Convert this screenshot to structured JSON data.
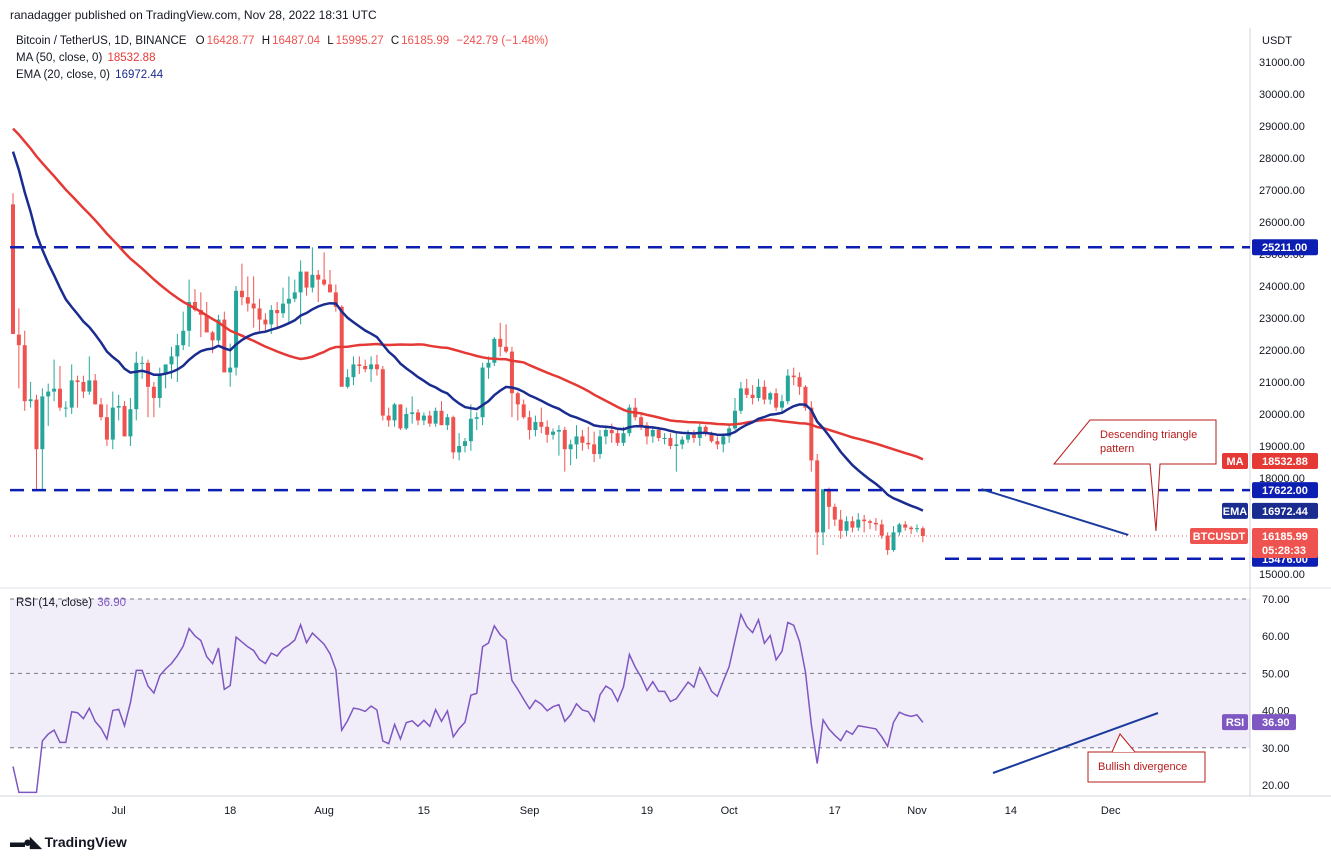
{
  "header": {
    "publisher_line": "ranadagger published on TradingView.com, Nov 28, 2022 18:31 UTC"
  },
  "legend": {
    "symbol": "Bitcoin / TetherUS, 1D, BINANCE",
    "open_label": "O",
    "open": "16428.77",
    "high_label": "H",
    "high": "16487.04",
    "low_label": "L",
    "low": "15995.27",
    "close_label": "C",
    "close": "16185.99",
    "change": "−242.79 (−1.48%)",
    "ma_label": "MA (50, close, 0)",
    "ma_value": "18532.88",
    "ema_label": "EMA (20, close, 0)",
    "ema_value": "16972.44",
    "rsi_label": "RSI (14, close)",
    "rsi_value": "36.90"
  },
  "branding": {
    "name": "TradingView"
  },
  "colors": {
    "up": "#26a69a",
    "down": "#ef5350",
    "ma": "#e53935",
    "ema": "#1a2c8f",
    "level": "#0d1fb3",
    "rsi": "#7e57c2",
    "annotation": "#b71c1c",
    "trendline": "#1a3a9e"
  },
  "chart_data": [
    {
      "type": "candlestick",
      "title": "Bitcoin / TetherUS, 1D, BINANCE",
      "ylabel": "USDT",
      "ylim": [
        14700,
        31600
      ],
      "y_ticks": [
        "31000.00",
        "30000.00",
        "29000.00",
        "28000.00",
        "27000.00",
        "26000.00",
        "25000.00",
        "24000.00",
        "23000.00",
        "22000.00",
        "21000.00",
        "20000.00",
        "19000.00",
        "18000.00",
        "17000.00",
        "16000.00",
        "15000.00"
      ],
      "x_tick_labels": [
        "Jul",
        "18",
        "Aug",
        "15",
        "Sep",
        "19",
        "Oct",
        "17",
        "Nov",
        "14",
        "Dec"
      ],
      "x_tick_index": [
        18,
        37,
        53,
        70,
        88,
        108,
        122,
        140,
        154,
        170,
        187
      ],
      "horizontal_levels": [
        {
          "value": 25211.0,
          "label": "25211.00"
        },
        {
          "value": 17622.0,
          "label": "17622.00"
        },
        {
          "value": 15476.0,
          "label": "15476.00"
        }
      ],
      "price_tags": [
        {
          "name": "MA",
          "value": 18532.88,
          "label": "18532.88"
        },
        {
          "name": "EMA",
          "value": 16972.44,
          "label": "16972.44"
        },
        {
          "name": "BTCUSDT",
          "value": 16185.99,
          "label": "16185.99",
          "countdown": "05:28:33"
        }
      ],
      "annotation": {
        "text_line1": "Descending triangle",
        "text_line2": "pattern"
      },
      "trendline": {
        "from": [
          165,
          17650
        ],
        "to": [
          190,
          16220
        ]
      },
      "ohlc_first_date": "2022-06-13",
      "series_ohlc": [
        [
          26550,
          26900,
          22600,
          22500
        ],
        [
          22480,
          23300,
          20800,
          22150
        ],
        [
          22150,
          22600,
          20100,
          20400
        ],
        [
          20400,
          21000,
          20200,
          20460
        ],
        [
          20450,
          20600,
          17600,
          18900
        ],
        [
          18900,
          20800,
          17600,
          20550
        ],
        [
          20550,
          20950,
          19630,
          20700
        ],
        [
          20700,
          21700,
          20400,
          20790
        ],
        [
          20790,
          21500,
          20100,
          20200
        ],
        [
          20200,
          20400,
          19900,
          20200
        ],
        [
          20200,
          21550,
          20000,
          21050
        ],
        [
          21050,
          21200,
          20200,
          21000
        ],
        [
          21000,
          21200,
          20500,
          20700
        ],
        [
          20700,
          21800,
          20600,
          21050
        ],
        [
          21050,
          21250,
          20300,
          20300
        ],
        [
          20300,
          20500,
          19800,
          19900
        ],
        [
          19900,
          20300,
          19000,
          19200
        ],
        [
          19200,
          20700,
          18900,
          20200
        ],
        [
          20200,
          20600,
          19800,
          20250
        ],
        [
          20250,
          20400,
          19300,
          19300
        ],
        [
          19300,
          20500,
          19000,
          20150
        ],
        [
          20150,
          21950,
          19800,
          21600
        ],
        [
          21600,
          21800,
          21100,
          21600
        ],
        [
          21600,
          21700,
          19900,
          20850
        ],
        [
          20850,
          21000,
          19900,
          20500
        ],
        [
          20500,
          21450,
          20200,
          21250
        ],
        [
          21250,
          21300,
          20800,
          21550
        ],
        [
          21550,
          22100,
          21100,
          21800
        ],
        [
          21800,
          22500,
          21000,
          22150
        ],
        [
          22150,
          23200,
          22000,
          22600
        ],
        [
          22600,
          24200,
          22100,
          23500
        ],
        [
          23500,
          23900,
          23200,
          23250
        ],
        [
          23250,
          23800,
          22400,
          23100
        ],
        [
          23100,
          23500,
          22700,
          22550
        ],
        [
          22550,
          22600,
          21900,
          22300
        ],
        [
          22300,
          23100,
          22200,
          22950
        ],
        [
          22950,
          23200,
          21400,
          21300
        ],
        [
          21300,
          22200,
          20850,
          21450
        ],
        [
          21450,
          24000,
          21200,
          23850
        ],
        [
          23850,
          24700,
          23400,
          23650
        ],
        [
          23650,
          24300,
          23200,
          23450
        ],
        [
          23450,
          24300,
          22700,
          23300
        ],
        [
          23300,
          23600,
          22600,
          22950
        ],
        [
          22950,
          23150,
          22600,
          22800
        ],
        [
          22800,
          23400,
          22500,
          23250
        ],
        [
          23250,
          23500,
          22700,
          23150
        ],
        [
          23150,
          23950,
          23000,
          23450
        ],
        [
          23450,
          24300,
          22850,
          23600
        ],
        [
          23600,
          24200,
          23500,
          23800
        ],
        [
          23800,
          24800,
          22800,
          24450
        ],
        [
          24450,
          24400,
          23700,
          23950
        ],
        [
          23950,
          25211,
          23800,
          24350
        ],
        [
          24350,
          24500,
          23500,
          24200
        ],
        [
          24200,
          25050,
          24000,
          24050
        ],
        [
          24050,
          24500,
          23850,
          23800
        ],
        [
          23800,
          24050,
          23200,
          23350
        ],
        [
          23350,
          23400,
          21200,
          20850
        ],
        [
          20850,
          21400,
          20800,
          21150
        ],
        [
          21150,
          21800,
          20900,
          21550
        ],
        [
          21550,
          21800,
          21250,
          21500
        ],
        [
          21500,
          21700,
          21300,
          21400
        ],
        [
          21400,
          21800,
          21000,
          21550
        ],
        [
          21550,
          21850,
          21200,
          21400
        ],
        [
          21400,
          21500,
          19800,
          19950
        ],
        [
          19950,
          20200,
          19600,
          19800
        ],
        [
          19800,
          20350,
          19600,
          20300
        ],
        [
          20300,
          20300,
          19500,
          19550
        ],
        [
          19550,
          20200,
          19500,
          20000
        ],
        [
          20000,
          20550,
          19700,
          20050
        ],
        [
          20050,
          20150,
          19650,
          19800
        ],
        [
          19800,
          20050,
          19650,
          19950
        ],
        [
          19950,
          20100,
          19600,
          19700
        ],
        [
          19700,
          20200,
          19600,
          20100
        ],
        [
          20100,
          20400,
          19650,
          19650
        ],
        [
          19650,
          20000,
          19500,
          19900
        ],
        [
          19900,
          19950,
          18600,
          18800
        ],
        [
          18800,
          19400,
          18550,
          19000
        ],
        [
          19000,
          19250,
          18800,
          19150
        ],
        [
          19150,
          20300,
          18850,
          19850
        ],
        [
          19850,
          20050,
          19500,
          19900
        ],
        [
          19900,
          21600,
          19650,
          21450
        ],
        [
          21450,
          21800,
          21100,
          21600
        ],
        [
          21600,
          22400,
          21500,
          22350
        ],
        [
          22350,
          22850,
          21800,
          22100
        ],
        [
          22100,
          22800,
          21900,
          21950
        ],
        [
          21950,
          22100,
          19900,
          20650
        ],
        [
          20650,
          20700,
          19800,
          20300
        ],
        [
          20300,
          20450,
          19850,
          19900
        ],
        [
          19900,
          20100,
          19200,
          19500
        ],
        [
          19500,
          19950,
          19300,
          19750
        ],
        [
          19750,
          20200,
          19400,
          19600
        ],
        [
          19600,
          19800,
          19100,
          19350
        ],
        [
          19350,
          19550,
          19200,
          19450
        ],
        [
          19450,
          19650,
          18700,
          19500
        ],
        [
          19500,
          19600,
          18200,
          18900
        ],
        [
          18900,
          19200,
          18400,
          19050
        ],
        [
          19050,
          19650,
          18600,
          19300
        ],
        [
          19300,
          19500,
          18850,
          19100
        ],
        [
          19100,
          19600,
          18900,
          19050
        ],
        [
          19050,
          19450,
          18500,
          18750
        ],
        [
          18750,
          19500,
          18600,
          19300
        ],
        [
          19300,
          19600,
          19050,
          19500
        ],
        [
          19500,
          19700,
          19100,
          19400
        ],
        [
          19400,
          19550,
          19000,
          19100
        ],
        [
          19100,
          19600,
          19000,
          19400
        ],
        [
          19400,
          20300,
          19300,
          20200
        ],
        [
          20200,
          20500,
          19800,
          19900
        ],
        [
          19900,
          20000,
          19500,
          19650
        ],
        [
          19650,
          19750,
          19050,
          19300
        ],
        [
          19300,
          19600,
          19100,
          19500
        ],
        [
          19500,
          19600,
          19150,
          19250
        ],
        [
          19250,
          19400,
          19050,
          19250
        ],
        [
          19250,
          19400,
          18900,
          19000
        ],
        [
          19000,
          19400,
          18200,
          19050
        ],
        [
          19050,
          19300,
          18900,
          19200
        ],
        [
          19200,
          19500,
          19100,
          19350
        ],
        [
          19350,
          19500,
          19100,
          19250
        ],
        [
          19250,
          19700,
          19000,
          19600
        ],
        [
          19600,
          19650,
          19300,
          19400
        ],
        [
          19400,
          19450,
          19100,
          19150
        ],
        [
          19150,
          19300,
          18900,
          19050
        ],
        [
          19050,
          19400,
          18800,
          19300
        ],
        [
          19300,
          19700,
          19100,
          19550
        ],
        [
          19550,
          20500,
          19500,
          20100
        ],
        [
          20100,
          21000,
          20000,
          20800
        ],
        [
          20800,
          21100,
          20500,
          20600
        ],
        [
          20600,
          20900,
          20300,
          20500
        ],
        [
          20500,
          21100,
          20400,
          20850
        ],
        [
          20850,
          21050,
          20300,
          20450
        ],
        [
          20450,
          20700,
          20300,
          20650
        ],
        [
          20650,
          20800,
          20100,
          20200
        ],
        [
          20200,
          20600,
          20000,
          20400
        ],
        [
          20400,
          21400,
          20300,
          21200
        ],
        [
          21200,
          21450,
          20900,
          21150
        ],
        [
          21150,
          21300,
          20600,
          20850
        ],
        [
          20850,
          20900,
          20100,
          20200
        ],
        [
          20200,
          20400,
          18200,
          18550
        ],
        [
          18550,
          18750,
          15600,
          16300
        ],
        [
          16300,
          17500,
          15900,
          17650
        ],
        [
          17650,
          17700,
          16400,
          17100
        ],
        [
          17100,
          17200,
          16500,
          16700
        ],
        [
          16700,
          17000,
          16100,
          16350
        ],
        [
          16350,
          16800,
          16200,
          16650
        ],
        [
          16650,
          16800,
          16300,
          16450
        ],
        [
          16450,
          16900,
          16350,
          16700
        ],
        [
          16700,
          16850,
          16300,
          16650
        ],
        [
          16650,
          16700,
          16400,
          16600
        ],
        [
          16600,
          16750,
          16350,
          16550
        ],
        [
          16550,
          16700,
          16100,
          16200
        ],
        [
          16200,
          16300,
          15600,
          15750
        ],
        [
          15750,
          16500,
          15700,
          16300
        ],
        [
          16300,
          16600,
          16200,
          16550
        ],
        [
          16550,
          16650,
          16350,
          16450
        ],
        [
          16450,
          16500,
          16250,
          16400
        ],
        [
          16400,
          16550,
          16300,
          16430
        ],
        [
          16428.77,
          16487.04,
          15995.27,
          16185.99
        ]
      ]
    },
    {
      "type": "line",
      "title": "RSI (14, close)",
      "ylim": [
        17,
        71
      ],
      "y_ticks": [
        "70.00",
        "60.00",
        "50.00",
        "40.00",
        "30.00",
        "20.00"
      ],
      "levels": [
        70,
        50,
        30
      ],
      "value": 36.9,
      "label": "RSI",
      "annotation": {
        "text": "Bullish divergence"
      }
    }
  ]
}
